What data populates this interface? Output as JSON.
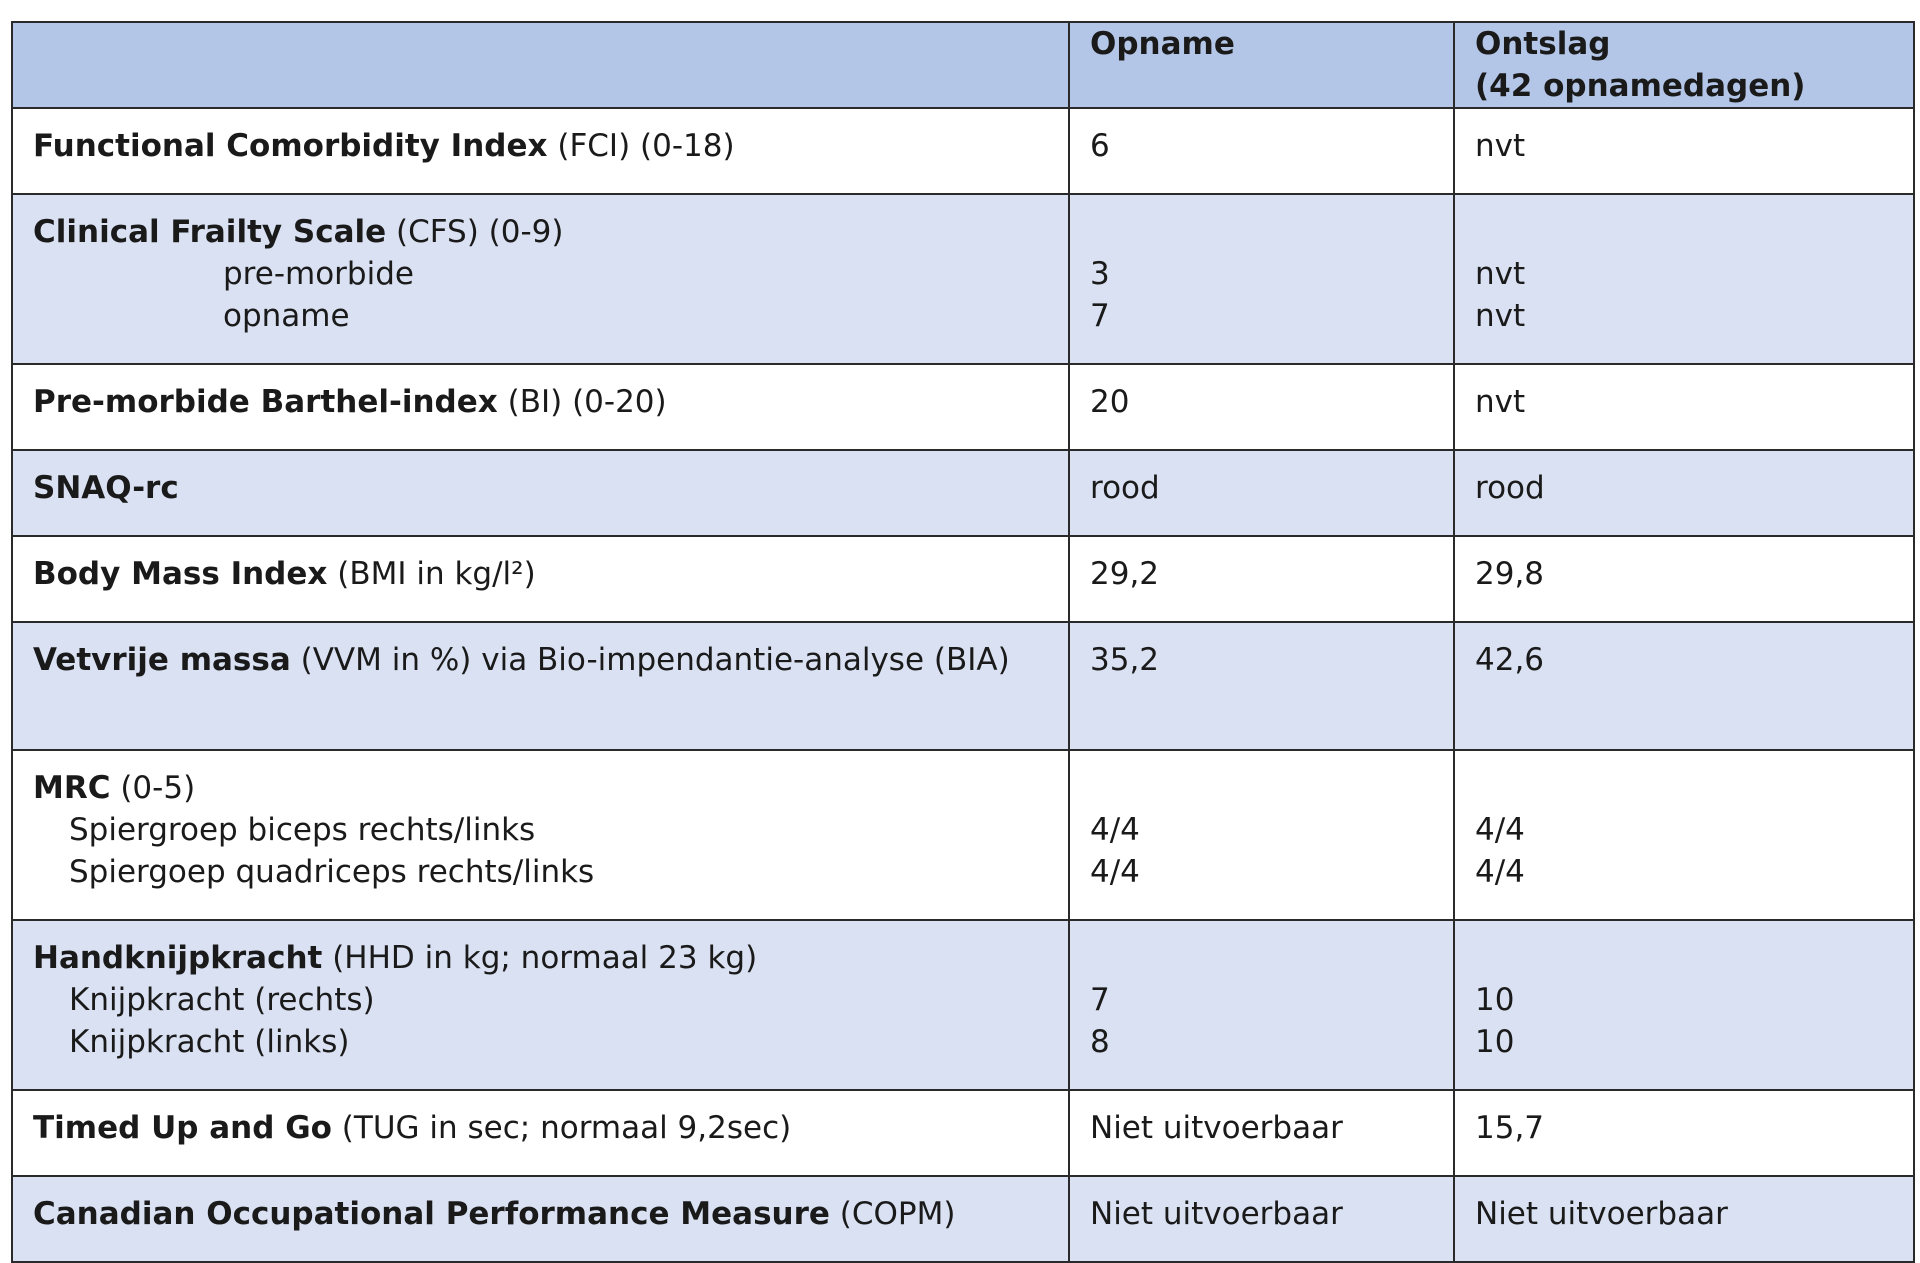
{
  "header": {
    "col1": "",
    "col2": "Opname",
    "col3_line1": "Ontslag",
    "col3_line2": "(42 opnamedagen)"
  },
  "rows": [
    {
      "label_bold": "Functional Comorbidity Index",
      "label_rest": " (FCI) (0-18)",
      "opname": "6",
      "ontslag": "nvt"
    },
    {
      "label_bold": "Clinical Frailty Scale",
      "label_rest": " (CFS) (0-9)",
      "subrows": [
        {
          "label": "pre-morbide",
          "opname": "3",
          "ontslag": "nvt"
        },
        {
          "label": "opname",
          "opname": "7",
          "ontslag": "nvt"
        }
      ]
    },
    {
      "label_bold": "Pre-morbide Barthel-index",
      "label_rest": " (BI) (0-20)",
      "opname": "20",
      "ontslag": "nvt"
    },
    {
      "label_bold": "SNAQ-rc",
      "label_rest": "",
      "opname": "rood",
      "ontslag": "rood"
    },
    {
      "label_bold": "Body Mass Index",
      "label_rest": " (BMI in kg/l²)",
      "opname": "29,2",
      "ontslag": "29,8"
    },
    {
      "label_bold": "Vetvrije massa",
      "label_rest": " (VVM in %) via Bio-impendantie-analyse (BIA)",
      "opname": "35,2",
      "ontslag": "42,6"
    },
    {
      "label_bold": "MRC",
      "label_rest": " (0-5)",
      "subrows": [
        {
          "label": "Spiergroep biceps rechts/links",
          "opname": "4/4",
          "ontslag": "4/4"
        },
        {
          "label": "Spiergoep quadriceps rechts/links",
          "opname": "4/4",
          "ontslag": "4/4"
        }
      ]
    },
    {
      "label_bold": "Handknijpkracht",
      "label_rest": " (HHD in kg; normaal 23 kg)",
      "subrows": [
        {
          "label": "Knijpkracht (rechts)",
          "opname": "7",
          "ontslag": "10"
        },
        {
          "label": "Knijpkracht (links)",
          "opname": "8",
          "ontslag": "10"
        }
      ]
    },
    {
      "label_bold": "Timed Up and Go",
      "label_rest": " (TUG in sec; normaal 9,2sec)",
      "opname": "Niet uitvoerbaar",
      "ontslag": "15,7"
    },
    {
      "label_bold": "Canadian Occupational Performance Measure",
      "label_rest": " (COPM)",
      "opname": "Niet uitvoerbaar",
      "ontslag": "Niet uitvoerbaar"
    }
  ]
}
